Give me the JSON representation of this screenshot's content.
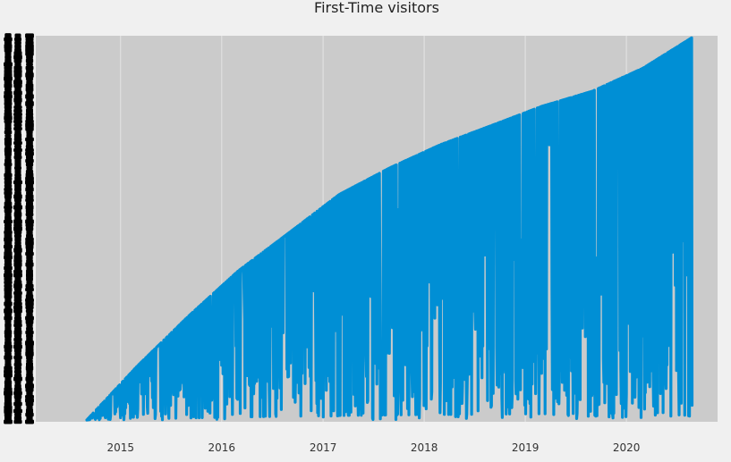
{
  "chart_data": {
    "type": "line",
    "title": "First-Time visitors",
    "xlabel": "",
    "ylabel": "",
    "x_tick_labels": [
      "2015",
      "2016",
      "2017",
      "2018",
      "2019",
      "2020"
    ],
    "x_range": [
      "2014-03-01",
      "2020-11-25"
    ],
    "grid": true,
    "legend": "none",
    "y_tick_labels_legible": false,
    "series": [
      {
        "color": "#008fd5",
        "description_points": [
          [
            "2014-09-01",
            0
          ],
          [
            "2015-03-01",
            0.14
          ],
          [
            "2015-09-01",
            0.27
          ],
          [
            "2016-03-01",
            0.39
          ],
          [
            "2016-09-01",
            0.49
          ],
          [
            "2017-03-01",
            0.59
          ],
          [
            "2017-09-01",
            0.66
          ],
          [
            "2018-03-01",
            0.72
          ],
          [
            "2018-09-01",
            0.77
          ],
          [
            "2019-03-01",
            0.82
          ],
          [
            "2019-09-01",
            0.86
          ],
          [
            "2020-03-01",
            0.92
          ],
          [
            "2020-08-25",
            1.0
          ]
        ]
      }
    ]
  },
  "colors": {
    "background": "#f0f0f0",
    "plot_area": "#cbcbcb",
    "grid": "#e0e0e0",
    "series": "#008fd5",
    "y_ticks": "#000000"
  }
}
